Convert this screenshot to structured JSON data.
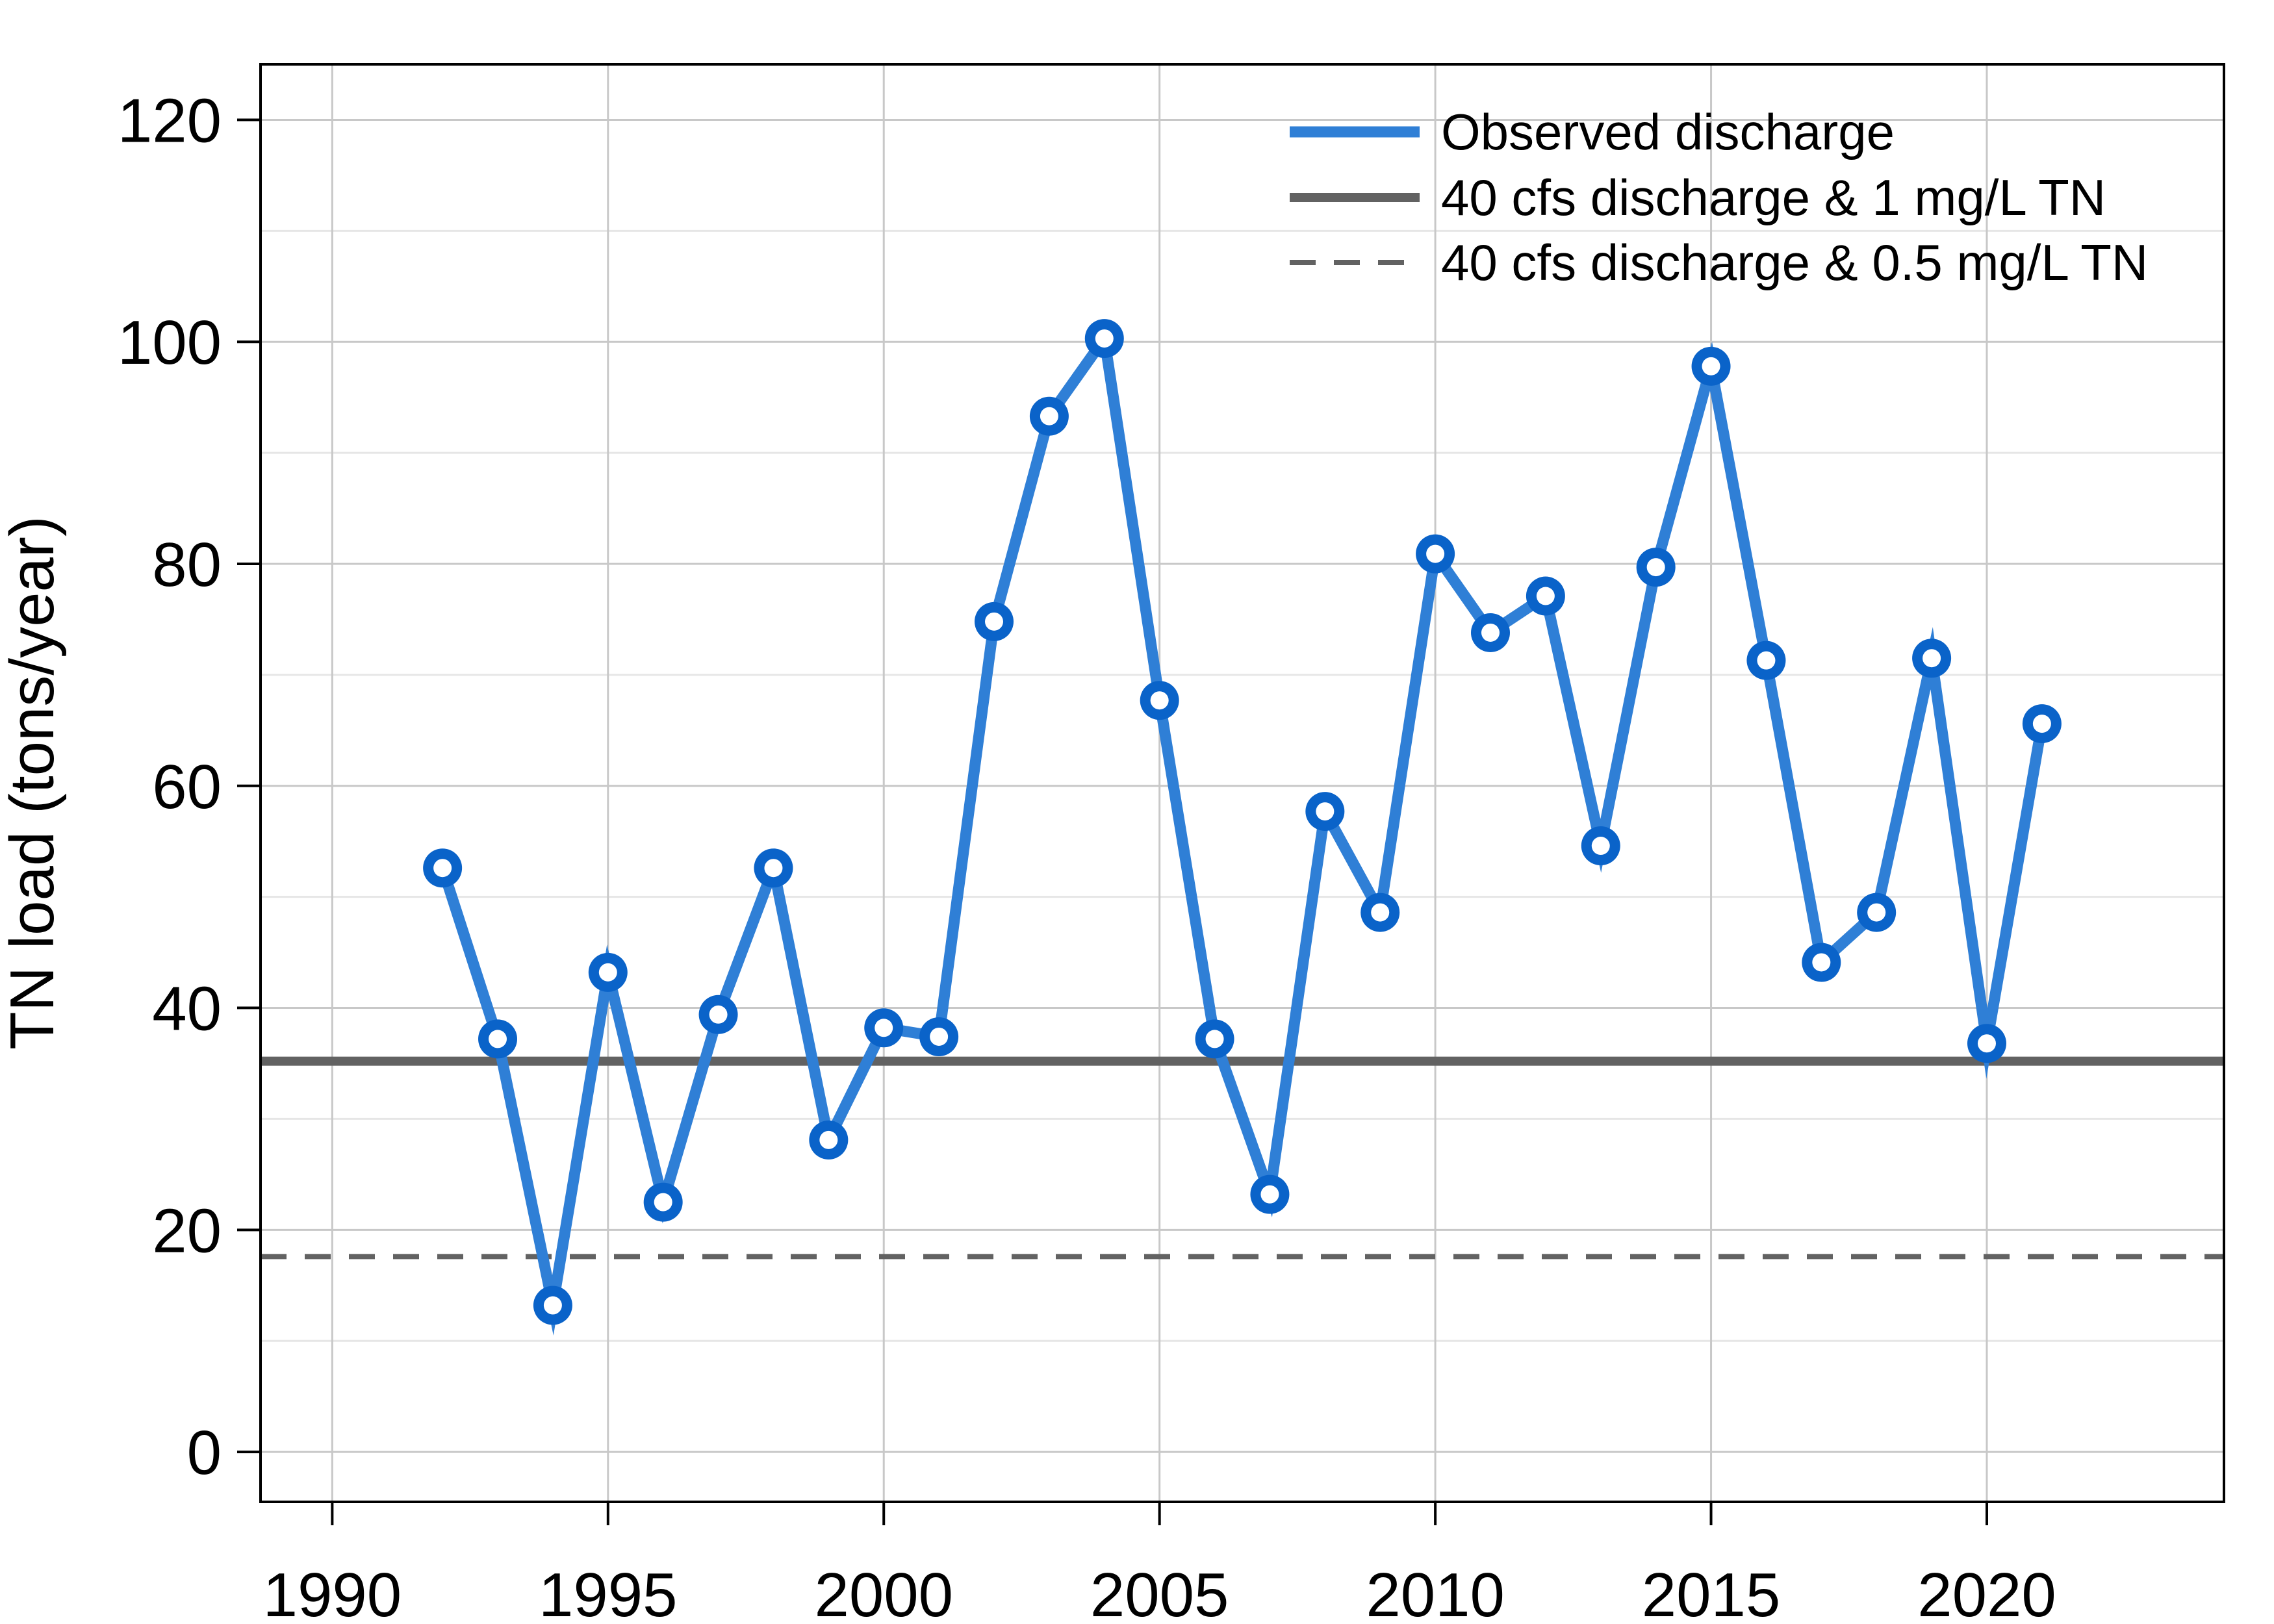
{
  "chart_data": {
    "type": "line",
    "title": "",
    "xlabel": "",
    "ylabel": "TN load (tons/year)",
    "xlim": [
      1988.7,
      2024.3
    ],
    "ylim": [
      -4.5,
      125
    ],
    "x_ticks": [
      1990,
      1995,
      2000,
      2005,
      2010,
      2015,
      2020
    ],
    "y_ticks": [
      0,
      20,
      40,
      60,
      80,
      100,
      120
    ],
    "grid": true,
    "legend_position": "top-right",
    "series": [
      {
        "name": "Observed discharge",
        "color": "#2f7fd6",
        "marker_color": "#0a63c9",
        "style": "line-with-markers",
        "x": [
          1992,
          1993,
          1994,
          1995,
          1996,
          1997,
          1998,
          1999,
          2000,
          2001,
          2002,
          2003,
          2004,
          2005,
          2006,
          2007,
          2008,
          2009,
          2010,
          2011,
          2012,
          2013,
          2014,
          2015,
          2016,
          2017,
          2018,
          2019,
          2020,
          2021
        ],
        "y": [
          52.6,
          37.2,
          13.2,
          43.2,
          22.5,
          39.4,
          52.6,
          28.1,
          38.2,
          37.4,
          74.8,
          93.3,
          100.3,
          67.7,
          37.2,
          23.2,
          57.7,
          48.6,
          80.9,
          73.8,
          77.1,
          54.6,
          79.7,
          97.8,
          71.3,
          44.1,
          48.6,
          71.5,
          36.8,
          65.6
        ]
      },
      {
        "name": "40 cfs discharge & 1 mg/L TN",
        "color": "#626262",
        "style": "solid",
        "y": 35.2
      },
      {
        "name": "40 cfs discharge & 0.5 mg/L TN",
        "color": "#626262",
        "style": "dashed",
        "y": 17.6
      }
    ]
  }
}
